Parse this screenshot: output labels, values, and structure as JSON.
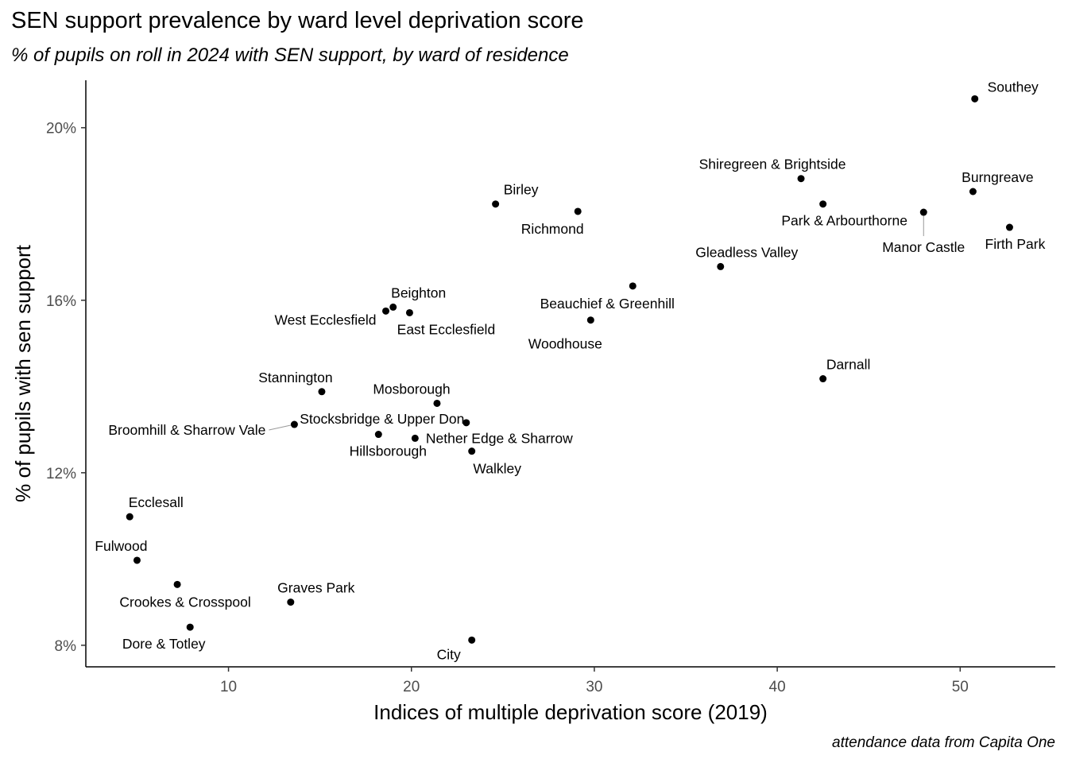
{
  "title": "SEN support prevalence by ward level deprivation score",
  "subtitle": "% of pupils on roll in 2024 with SEN support, by ward of residence",
  "caption": "attendance data from Capita One",
  "chart_data": {
    "type": "scatter",
    "xlabel": "Indices of multiple deprivation score (2019)",
    "ylabel": "% of pupils with sen support",
    "xlim": [
      2.2,
      55.2
    ],
    "ylim": [
      7.5,
      21.1
    ],
    "x_ticks": [
      {
        "value": 10,
        "label": "10"
      },
      {
        "value": 20,
        "label": "20"
      },
      {
        "value": 30,
        "label": "30"
      },
      {
        "value": 40,
        "label": "40"
      },
      {
        "value": 50,
        "label": "50"
      }
    ],
    "y_ticks": [
      {
        "value": 8,
        "label": "8%"
      },
      {
        "value": 12,
        "label": "12%"
      },
      {
        "value": 16,
        "label": "16%"
      },
      {
        "value": 20,
        "label": "20%"
      }
    ],
    "grid": false,
    "legend": "none",
    "point_color": "#000000",
    "points": [
      {
        "name": "Southey",
        "x": 50.8,
        "y": 20.67
      },
      {
        "name": "Shiregreen & Brightside",
        "x": 41.3,
        "y": 18.82
      },
      {
        "name": "Burngreave",
        "x": 50.7,
        "y": 18.52
      },
      {
        "name": "Park & Arbourthorne",
        "x": 42.5,
        "y": 18.23
      },
      {
        "name": "Birley",
        "x": 24.6,
        "y": 18.23
      },
      {
        "name": "Richmond",
        "x": 29.1,
        "y": 18.06
      },
      {
        "name": "Manor Castle",
        "x": 48.0,
        "y": 18.04
      },
      {
        "name": "Firth Park",
        "x": 52.7,
        "y": 17.69
      },
      {
        "name": "Gleadless Valley",
        "x": 36.9,
        "y": 16.78
      },
      {
        "name": "Beauchief & Greenhill",
        "x": 32.1,
        "y": 16.33
      },
      {
        "name": "Beighton",
        "x": 19.0,
        "y": 15.84
      },
      {
        "name": "West Ecclesfield",
        "x": 18.6,
        "y": 15.75
      },
      {
        "name": "East Ecclesfield",
        "x": 19.9,
        "y": 15.71
      },
      {
        "name": "Woodhouse",
        "x": 29.8,
        "y": 15.54
      },
      {
        "name": "Darnall",
        "x": 42.5,
        "y": 14.18
      },
      {
        "name": "Stannington",
        "x": 15.1,
        "y": 13.88
      },
      {
        "name": "Mosborough",
        "x": 21.4,
        "y": 13.61
      },
      {
        "name": "Stocksbridge & Upper Don",
        "x": 23.0,
        "y": 13.16
      },
      {
        "name": "Broomhill & Sharrow Vale",
        "x": 13.6,
        "y": 13.12
      },
      {
        "name": "Hillsborough",
        "x": 18.2,
        "y": 12.89
      },
      {
        "name": "Nether Edge & Sharrow",
        "x": 20.2,
        "y": 12.8
      },
      {
        "name": "Walkley",
        "x": 23.3,
        "y": 12.5
      },
      {
        "name": "Ecclesall",
        "x": 4.6,
        "y": 10.98
      },
      {
        "name": "Fulwood",
        "x": 5.0,
        "y": 9.97
      },
      {
        "name": "Crookes & Crosspool",
        "x": 7.2,
        "y": 9.41
      },
      {
        "name": "Graves Park",
        "x": 13.4,
        "y": 9.0
      },
      {
        "name": "Dore & Totley",
        "x": 7.9,
        "y": 8.42
      },
      {
        "name": "City",
        "x": 23.3,
        "y": 8.12
      }
    ]
  }
}
